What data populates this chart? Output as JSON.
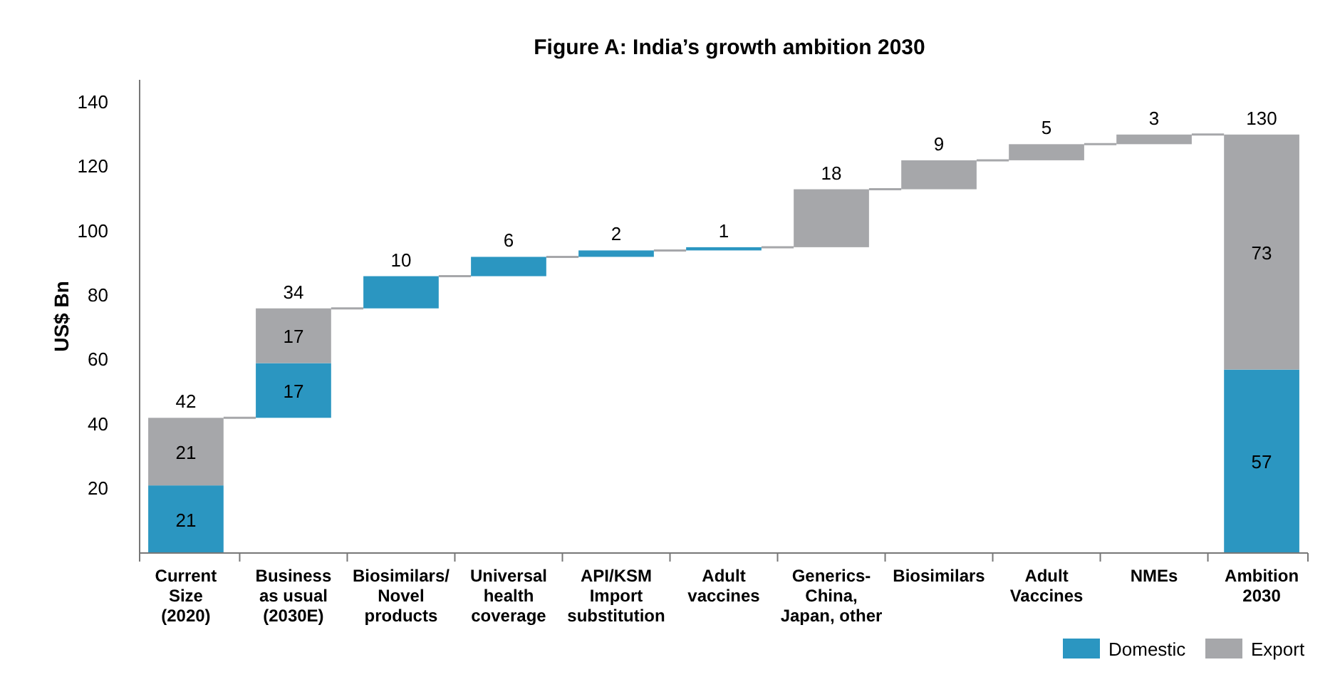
{
  "chart_data": {
    "type": "bar",
    "title": "Figure A: India’s growth ambition 2030",
    "ylabel": "US$ Bn",
    "categories": [
      "Current\nSize\n(2020)",
      "Business\nas usual\n(2030E)",
      "Biosimilars/\nNovel\nproducts",
      "Universal\nhealth\ncoverage",
      "API/KSM\nImport\nsubstitution",
      "Adult\nvaccines",
      "Generics-\nChina,\nJapan, other",
      "Biosimilars",
      "Adult\nVaccines",
      "NMEs",
      "Ambition\n2030"
    ],
    "series": [
      {
        "name": "Domestic",
        "color": "#2b96c1",
        "values": [
          21,
          17,
          10,
          6,
          2,
          1,
          null,
          null,
          null,
          null,
          57
        ],
        "base": [
          0,
          42,
          76,
          86,
          92,
          94,
          null,
          null,
          null,
          null,
          0
        ],
        "value_labels": [
          "21",
          "17",
          null,
          null,
          null,
          null,
          null,
          null,
          null,
          null,
          "57"
        ]
      },
      {
        "name": "Export",
        "color": "#a6a7aa",
        "values": [
          21,
          17,
          null,
          null,
          null,
          null,
          18,
          9,
          5,
          3,
          73
        ],
        "base": [
          21,
          59,
          null,
          null,
          null,
          null,
          95,
          113,
          122,
          127,
          57
        ],
        "value_labels": [
          "21",
          "17",
          null,
          null,
          null,
          null,
          null,
          null,
          null,
          null,
          "73"
        ]
      }
    ],
    "totals": [
      "42",
      "34",
      "10",
      "6",
      "2",
      "1",
      "18",
      "9",
      "5",
      "3",
      "130"
    ],
    "ylim": [
      0,
      147
    ],
    "yticks": [
      20,
      40,
      60,
      80,
      100,
      120,
      140
    ],
    "grid": false,
    "legend": "bottom right"
  }
}
